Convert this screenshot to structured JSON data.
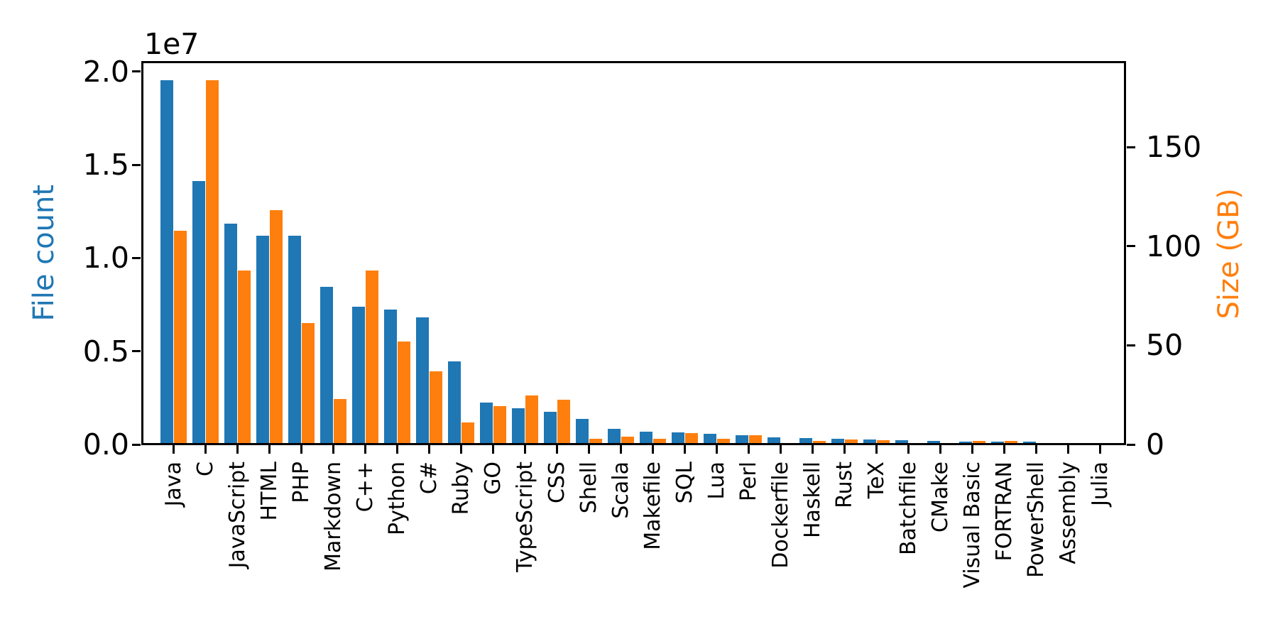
{
  "figure": {
    "background": "#ffffff",
    "axis_color": "#000000"
  },
  "chart_data": {
    "type": "bar",
    "title": "",
    "xlabel": "",
    "grid": false,
    "legend": "none",
    "x_tick_rotation": 90,
    "categories": [
      "Java",
      "C",
      "JavaScript",
      "HTML",
      "PHP",
      "Markdown",
      "C++",
      "Python",
      "C#",
      "Ruby",
      "GO",
      "TypeScript",
      "CSS",
      "Shell",
      "Scala",
      "Makefile",
      "SQL",
      "Lua",
      "Perl",
      "Dockerfile",
      "Haskell",
      "Rust",
      "TeX",
      "Batchfile",
      "CMake",
      "Visual Basic",
      "FORTRAN",
      "PowerShell",
      "Assembly",
      "Julia"
    ],
    "series": [
      {
        "name": "File count",
        "axis": "left",
        "color": "#1f77b4",
        "values": [
          19548190,
          14143113,
          11839883,
          11178557,
          11177610,
          8464626,
          7380520,
          7226626,
          6811652,
          4473331,
          2265436,
          1940406,
          1734406,
          1385648,
          835755,
          679430,
          656671,
          578554,
          497949,
          366505,
          340380,
          322431,
          251015,
          236945,
          175282,
          155652,
          142038,
          136846,
          82905,
          58317
        ]
      },
      {
        "name": "Size (GB)",
        "axis": "right",
        "color": "#ff7f0e",
        "values": [
          107.7,
          183.83,
          87.82,
          118.12,
          61.41,
          23.09,
          87.73,
          52.03,
          36.83,
          10.95,
          19.28,
          24.59,
          22.67,
          3.01,
          3.87,
          2.92,
          5.67,
          2.81,
          4.7,
          0.71,
          1.85,
          2.68,
          2.15,
          0.7,
          0.54,
          1.91,
          1.62,
          0.69,
          0.78,
          0.29
        ]
      }
    ],
    "left_axis": {
      "label": "File count",
      "color": "#1f77b4",
      "offset_label": "1e7",
      "tick_labels": [
        "0.0",
        "0.5",
        "1.0",
        "1.5",
        "2.0"
      ],
      "tick_values": [
        0,
        5000000,
        10000000,
        15000000,
        20000000
      ],
      "max": 20525600
    },
    "right_axis": {
      "label": "Size (GB)",
      "color": "#ff7f0e",
      "tick_labels": [
        "0",
        "50",
        "100",
        "150"
      ],
      "tick_values": [
        0,
        50,
        100,
        150
      ],
      "max": 193.02
    }
  }
}
